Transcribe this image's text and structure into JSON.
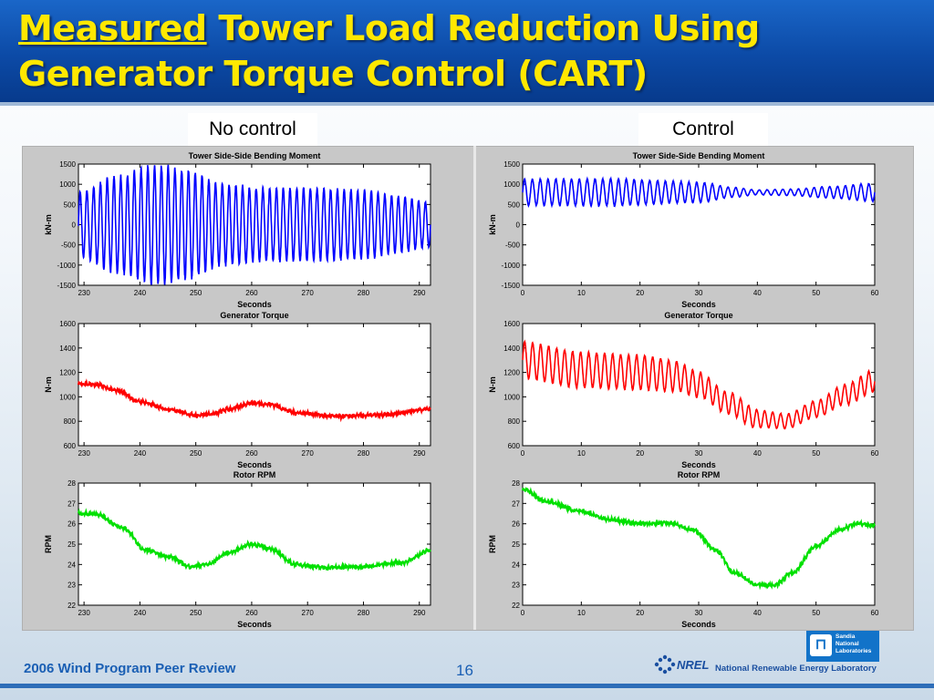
{
  "slide": {
    "title_emphasis": "Measured",
    "title_rest": " Tower Load Reduction Using Generator Torque Control (CART)",
    "label_left": "No control",
    "label_right": "Control",
    "footer_left": "2006 Wind Program Peer Review",
    "page_number": "16",
    "nrel_name": "National Renewable Energy Laboratory",
    "sandia_name": "Sandia National Laboratories",
    "sandia_lines": [
      "Sandia",
      "National",
      "Laboratories"
    ],
    "nrel_wordmark": "NREL"
  },
  "chart_data": [
    {
      "type": "line",
      "panel": "no-control",
      "title": "Tower Side-Side Bending Moment",
      "xlabel": "Seconds",
      "ylabel": "kN-m",
      "xlim": [
        229,
        292
      ],
      "ylim": [
        -1500,
        1500
      ],
      "xticks": [
        230,
        240,
        250,
        260,
        270,
        280,
        290
      ],
      "yticks": [
        1500,
        1000,
        500,
        0,
        -500,
        -1000,
        -1500
      ],
      "color": "#0000ff",
      "grid": false,
      "profile": {
        "kind": "oscillation",
        "cycles": 52,
        "center": [
          [
            229,
            0
          ],
          [
            292,
            0
          ]
        ],
        "amplitude": [
          [
            229,
            800
          ],
          [
            236,
            1200
          ],
          [
            243,
            1480
          ],
          [
            248,
            1350
          ],
          [
            255,
            1000
          ],
          [
            262,
            900
          ],
          [
            270,
            900
          ],
          [
            280,
            850
          ],
          [
            286,
            700
          ],
          [
            292,
            550
          ]
        ]
      }
    },
    {
      "type": "line",
      "panel": "no-control",
      "title": "Generator Torque",
      "xlabel": "Seconds",
      "ylabel": "N-m",
      "xlim": [
        229,
        292
      ],
      "ylim": [
        600,
        1600
      ],
      "xticks": [
        230,
        240,
        250,
        260,
        270,
        280,
        290
      ],
      "yticks": [
        1600,
        1400,
        1200,
        1000,
        800,
        600
      ],
      "color": "#ff0000",
      "grid": false,
      "profile": {
        "kind": "smooth",
        "values": [
          [
            229,
            1110
          ],
          [
            232,
            1100
          ],
          [
            236,
            1050
          ],
          [
            240,
            960
          ],
          [
            245,
            900
          ],
          [
            250,
            850
          ],
          [
            253,
            860
          ],
          [
            256,
            900
          ],
          [
            260,
            950
          ],
          [
            263,
            940
          ],
          [
            268,
            870
          ],
          [
            275,
            840
          ],
          [
            283,
            850
          ],
          [
            292,
            900
          ]
        ],
        "noise": 12
      }
    },
    {
      "type": "line",
      "panel": "no-control",
      "title": "Rotor RPM",
      "xlabel": "Seconds",
      "ylabel": "RPM",
      "xlim": [
        229,
        292
      ],
      "ylim": [
        22,
        28
      ],
      "xticks": [
        230,
        240,
        250,
        260,
        270,
        280,
        290
      ],
      "yticks": [
        28,
        27,
        26,
        25,
        24,
        23,
        22
      ],
      "color": "#00e000",
      "grid": false,
      "profile": {
        "kind": "smooth",
        "values": [
          [
            229,
            26.5
          ],
          [
            232,
            26.5
          ],
          [
            237,
            25.8
          ],
          [
            241,
            24.7
          ],
          [
            245,
            24.4
          ],
          [
            249,
            23.9
          ],
          [
            252,
            24.0
          ],
          [
            256,
            24.6
          ],
          [
            260,
            25.0
          ],
          [
            263,
            24.8
          ],
          [
            268,
            24.0
          ],
          [
            273,
            23.85
          ],
          [
            280,
            23.9
          ],
          [
            287,
            24.1
          ],
          [
            292,
            24.7
          ]
        ],
        "noise": 0.07
      }
    },
    {
      "type": "line",
      "panel": "control",
      "title": "Tower Side-Side Bending Moment",
      "xlabel": "Seconds",
      "ylabel": "kN-m",
      "xlim": [
        0,
        60
      ],
      "ylim": [
        -1500,
        1500
      ],
      "xticks": [
        0,
        10,
        20,
        30,
        40,
        50,
        60
      ],
      "yticks": [
        1500,
        1000,
        500,
        0,
        -500,
        -1000,
        -1500
      ],
      "color": "#0000ff",
      "grid": false,
      "profile": {
        "kind": "oscillation",
        "cycles": 45,
        "center": [
          [
            0,
            800
          ],
          [
            60,
            800
          ]
        ],
        "amplitude": [
          [
            0,
            320
          ],
          [
            15,
            330
          ],
          [
            30,
            250
          ],
          [
            36,
            120
          ],
          [
            40,
            60
          ],
          [
            46,
            80
          ],
          [
            52,
            140
          ],
          [
            60,
            220
          ]
        ]
      }
    },
    {
      "type": "line",
      "panel": "control",
      "title": "Generator Torque",
      "xlabel": "Seconds",
      "ylabel": "N-m",
      "xlim": [
        0,
        60
      ],
      "ylim": [
        600,
        1600
      ],
      "xticks": [
        0,
        10,
        20,
        30,
        40,
        50,
        60
      ],
      "yticks": [
        1600,
        1400,
        1200,
        1000,
        800,
        600
      ],
      "color": "#ff0000",
      "grid": false,
      "profile": {
        "kind": "oscillation",
        "cycles": 44,
        "center": [
          [
            0,
            1300
          ],
          [
            10,
            1220
          ],
          [
            20,
            1200
          ],
          [
            26,
            1170
          ],
          [
            30,
            1100
          ],
          [
            35,
            950
          ],
          [
            40,
            820
          ],
          [
            45,
            800
          ],
          [
            50,
            900
          ],
          [
            55,
            1020
          ],
          [
            60,
            1130
          ]
        ],
        "amplitude": [
          [
            0,
            150
          ],
          [
            20,
            140
          ],
          [
            35,
            90
          ],
          [
            45,
            60
          ],
          [
            60,
            90
          ]
        ]
      }
    },
    {
      "type": "line",
      "panel": "control",
      "title": "Rotor RPM",
      "xlabel": "Seconds",
      "ylabel": "RPM",
      "xlim": [
        0,
        60
      ],
      "ylim": [
        22,
        28
      ],
      "xticks": [
        0,
        10,
        20,
        30,
        40,
        50,
        60
      ],
      "yticks": [
        28,
        27,
        26,
        25,
        24,
        23,
        22
      ],
      "color": "#00e000",
      "grid": false,
      "profile": {
        "kind": "smooth",
        "values": [
          [
            0,
            27.7
          ],
          [
            4,
            27.1
          ],
          [
            10,
            26.6
          ],
          [
            15,
            26.2
          ],
          [
            20,
            26.0
          ],
          [
            25,
            26.05
          ],
          [
            29,
            25.7
          ],
          [
            33,
            24.7
          ],
          [
            36,
            23.6
          ],
          [
            40,
            23.0
          ],
          [
            43,
            23.0
          ],
          [
            46,
            23.6
          ],
          [
            50,
            24.9
          ],
          [
            54,
            25.7
          ],
          [
            57,
            26.0
          ],
          [
            60,
            25.9
          ]
        ],
        "noise": 0.07
      }
    }
  ]
}
